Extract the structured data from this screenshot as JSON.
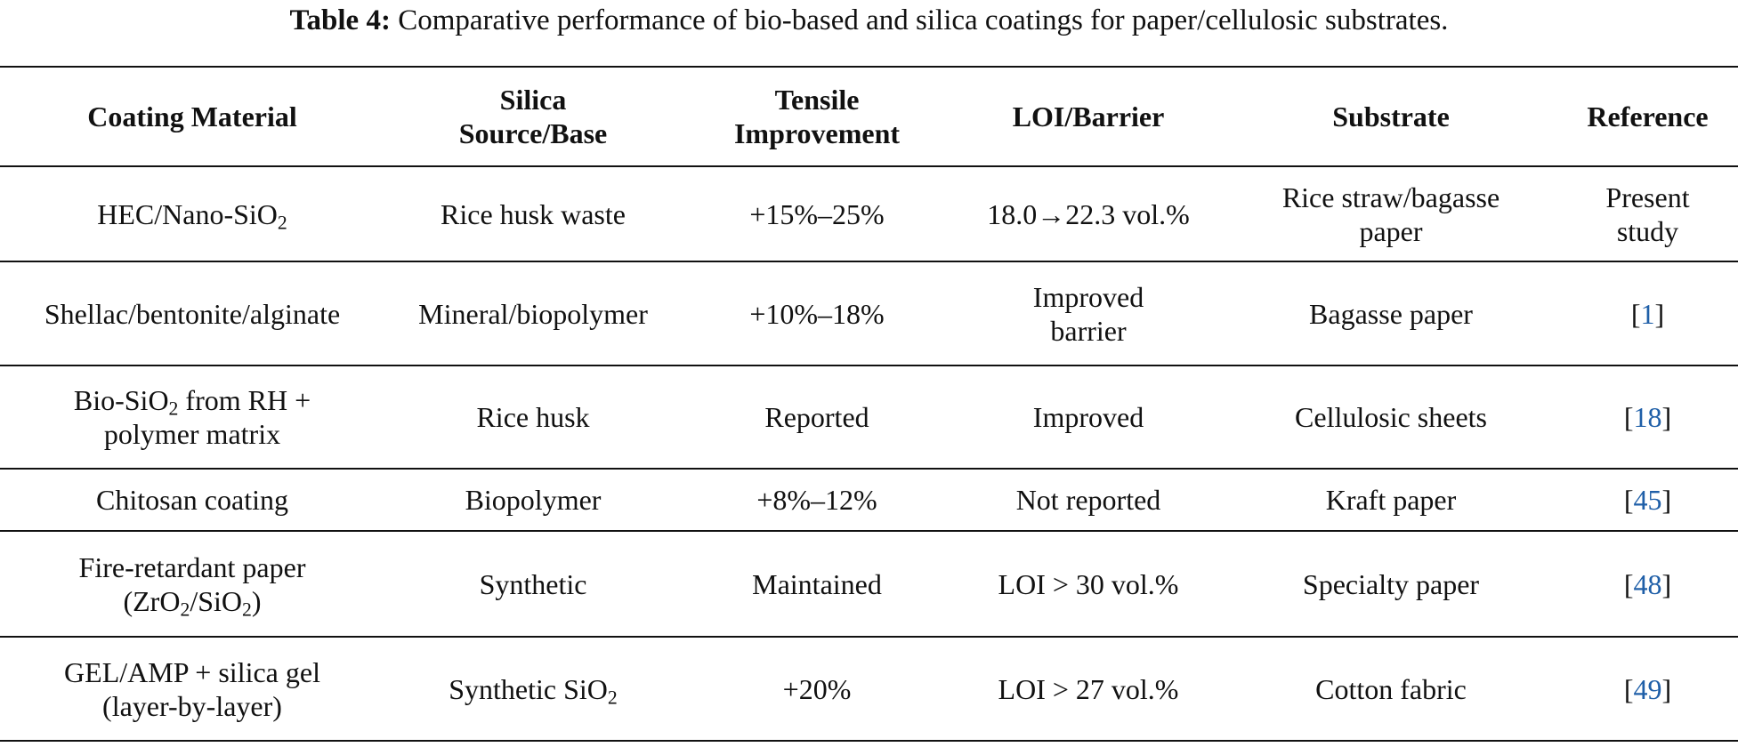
{
  "caption": {
    "label": "Table 4:",
    "text": "Comparative performance of bio-based and silica coatings for paper/cellulosic substrates."
  },
  "table": {
    "headers": {
      "coating_line1": "Coating Material",
      "silica_line1": "Silica",
      "silica_line2": "Source/Base",
      "tensile_line1": "Tensile",
      "tensile_line2": "Improvement",
      "loi": "LOI/Barrier",
      "substrate": "Substrate",
      "reference": "Reference"
    },
    "rows": [
      {
        "coating_pre": "HEC/Nano-SiO",
        "coating_sub": "2",
        "silica": "Rice husk waste",
        "tensile": "+15%–25%",
        "loi": "18.0→22.3 vol.%",
        "substrate_line1": "Rice straw/bagasse",
        "substrate_line2": "paper",
        "ref_line1": "Present",
        "ref_line2": "study"
      },
      {
        "coating": "Shellac/bentonite/alginate",
        "silica": "Mineral/biopolymer",
        "tensile": "+10%–18%",
        "loi_line1": "Improved",
        "loi_line2": "barrier",
        "substrate": "Bagasse paper",
        "ref_open": "[",
        "ref_num": "1",
        "ref_close": "]"
      },
      {
        "coating_pre": "Bio-SiO",
        "coating_sub": "2",
        "coating_post": " from RH +",
        "coating_line2": "polymer matrix",
        "silica": "Rice husk",
        "tensile": "Reported",
        "loi": "Improved",
        "substrate": "Cellulosic sheets",
        "ref_open": "[",
        "ref_num": "18",
        "ref_close": "]"
      },
      {
        "coating": "Chitosan coating",
        "silica": "Biopolymer",
        "tensile": "+8%–12%",
        "loi": "Not reported",
        "substrate": "Kraft paper",
        "ref_open": "[",
        "ref_num": "45",
        "ref_close": "]"
      },
      {
        "coating_line1": "Fire-retardant paper",
        "coating_p1": "(ZrO",
        "coating_s1": "2",
        "coating_p2": "/SiO",
        "coating_s2": "2",
        "coating_p3": ")",
        "silica": "Synthetic",
        "tensile": "Maintained",
        "loi": "LOI > 30 vol.%",
        "substrate": "Specialty paper",
        "ref_open": "[",
        "ref_num": "48",
        "ref_close": "]"
      },
      {
        "coating_line1": "GEL/AMP + silica gel",
        "coating_line2": "(layer-by-layer)",
        "silica_pre": "Synthetic SiO",
        "silica_sub": "2",
        "tensile": "+20%",
        "loi": "LOI > 27 vol.%",
        "substrate": "Cotton fabric",
        "ref_open": "[",
        "ref_num": "49",
        "ref_close": "]"
      }
    ]
  }
}
